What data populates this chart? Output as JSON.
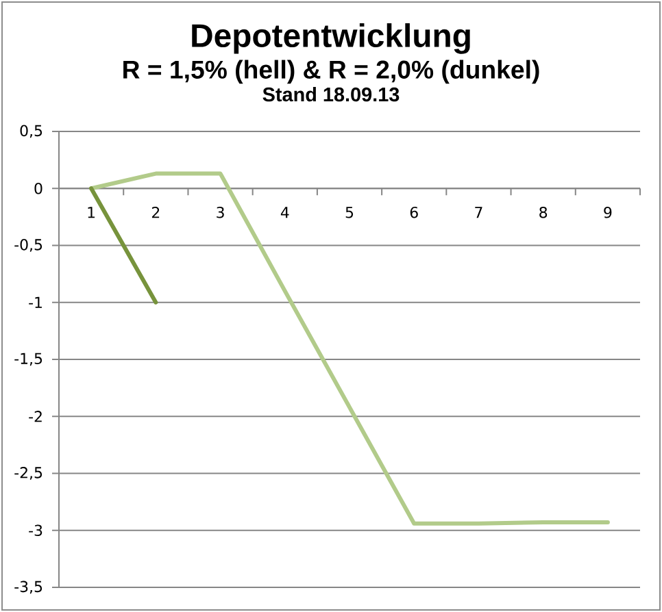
{
  "chart_data": {
    "type": "line",
    "title": "Depotentwicklung",
    "subtitle": "R = 1,5% (hell) & R = 2,0% (dunkel)",
    "annotations": [
      "Stand 18.09.13"
    ],
    "categories": [
      "1",
      "2",
      "3",
      "4",
      "5",
      "6",
      "7",
      "8",
      "9"
    ],
    "series": [
      {
        "color": "#b2cb8a",
        "values": [
          0,
          0.13,
          0.13,
          -0.9,
          -1.92,
          -2.94,
          -2.94,
          -2.93,
          -2.93
        ]
      },
      {
        "color": "#77933c",
        "values": [
          0,
          -1,
          null,
          null,
          null,
          null,
          null,
          null,
          null
        ]
      }
    ],
    "ylim": [
      -3.5,
      0.5
    ],
    "yticks": [
      {
        "value": 0.5,
        "label": "0,5"
      },
      0,
      {
        "value": -0.5,
        "label": "-0,5"
      },
      -1,
      {
        "value": -1.5,
        "label": "-1,5"
      },
      -2,
      {
        "value": -2.5,
        "label": "-2,5"
      },
      -3,
      {
        "value": -3.5,
        "label": "-3,5"
      }
    ],
    "grid": "y"
  }
}
